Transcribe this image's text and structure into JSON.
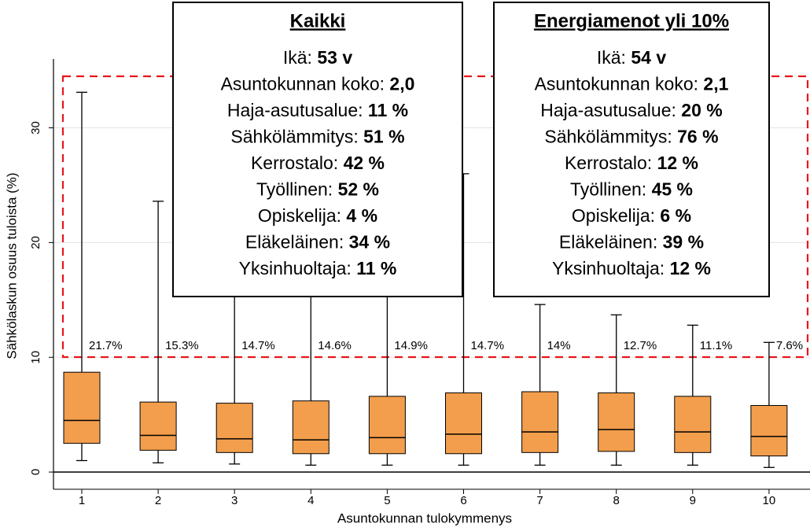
{
  "chart_data": {
    "type": "box",
    "y_label": "Sähkölaskun osuus tuloista (%)",
    "x_label": "Asuntokunnan tulokymmenys",
    "categories": [
      "1",
      "2",
      "3",
      "4",
      "5",
      "6",
      "7",
      "8",
      "9",
      "10"
    ],
    "color": "#f29e4c",
    "low": [
      1.0,
      0.8,
      0.7,
      0.6,
      0.6,
      0.6,
      0.6,
      0.6,
      0.6,
      0.4
    ],
    "q1": [
      2.5,
      1.9,
      1.7,
      1.6,
      1.6,
      1.6,
      1.7,
      1.8,
      1.7,
      1.4
    ],
    "median": [
      4.5,
      3.2,
      2.9,
      2.8,
      3.0,
      3.3,
      3.5,
      3.7,
      3.5,
      3.1
    ],
    "q3": [
      8.7,
      6.1,
      6.0,
      6.2,
      6.6,
      6.9,
      7.0,
      6.9,
      6.6,
      5.8
    ],
    "high": [
      33.1,
      23.6,
      27,
      27,
      26,
      26,
      14.6,
      13.7,
      12.8,
      11.3
    ],
    "annotations": [
      "21.7%",
      "15.3%",
      "14.7%",
      "14.6%",
      "14.9%",
      "14.7%",
      "14%",
      "12.7%",
      "11.1%",
      "7.6%"
    ],
    "ylim": [
      -1.5,
      36
    ],
    "yticks": [
      0,
      10,
      20,
      30
    ],
    "grid": true,
    "panels": [
      {
        "title": "Kaikki",
        "items": [
          {
            "label": "Ikä:",
            "value": "53 v"
          },
          {
            "label": "Asuntokunnan koko:",
            "value": "2,0"
          },
          {
            "label": "Haja-asutusalue:",
            "value": "11 %"
          },
          {
            "label": "Sähkölämmitys:",
            "value": "51 %"
          },
          {
            "label": "Kerrostalo:",
            "value": "42 %"
          },
          {
            "label": "Työllinen:",
            "value": "52 %"
          },
          {
            "label": "Opiskelija:",
            "value": "4 %"
          },
          {
            "label": "Eläkeläinen:",
            "value": "34 %"
          },
          {
            "label": "Yksinhuoltaja:",
            "value": "11 %"
          }
        ]
      },
      {
        "title": "Energiamenot yli 10%",
        "items": [
          {
            "label": "Ikä:",
            "value": "54 v"
          },
          {
            "label": "Asuntokunnan koko:",
            "value": "2,1"
          },
          {
            "label": "Haja-asutusalue:",
            "value": "20 %"
          },
          {
            "label": "Sähkölämmitys:",
            "value": "76 %"
          },
          {
            "label": "Kerrostalo:",
            "value": "12 %"
          },
          {
            "label": "Työllinen:",
            "value": "45 %"
          },
          {
            "label": "Opiskelija:",
            "value": "6 %"
          },
          {
            "label": "Eläkeläinen:",
            "value": "39 %"
          },
          {
            "label": "Yksinhuoltaja:",
            "value": "12 %"
          }
        ]
      }
    ]
  }
}
